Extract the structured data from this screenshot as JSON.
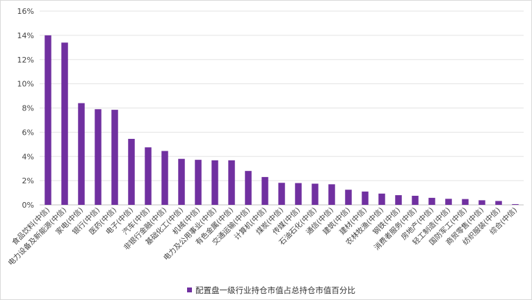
{
  "chart_data": {
    "type": "bar",
    "title": "",
    "xlabel": "",
    "ylabel": "",
    "ylim": [
      0,
      16
    ],
    "yticks": [
      "0%",
      "2%",
      "4%",
      "6%",
      "8%",
      "10%",
      "12%",
      "14%",
      "16%"
    ],
    "grid": true,
    "legend_position": "bottom",
    "color": "#7030A0",
    "categories": [
      "食品饮料(中信)",
      "电力设备及新能源(中信)",
      "家电(中信)",
      "银行(中信)",
      "医药(中信)",
      "电子(中信)",
      "汽车(中信)",
      "非银行金融(中信)",
      "基础化工(中信)",
      "机械(中信)",
      "电力及公用事业(中信)",
      "有色金属(中信)",
      "交通运输(中信)",
      "计算机(中信)",
      "煤炭(中信)",
      "传媒(中信)",
      "石油石化(中信)",
      "通信(中信)",
      "建筑(中信)",
      "建材(中信)",
      "农林牧渔(中信)",
      "钢铁(中信)",
      "消费者服务(中信)",
      "房地产(中信)",
      "轻工制造(中信)",
      "国防军工(中信)",
      "商贸零售(中信)",
      "纺织服装(中信)",
      "综合(中信)"
    ],
    "series": [
      {
        "name": "配置盘一级行业持仓市值占总持仓市值百分比",
        "values": [
          14.0,
          13.4,
          8.4,
          7.9,
          7.85,
          5.45,
          4.75,
          4.45,
          3.8,
          3.72,
          3.68,
          3.68,
          2.8,
          2.3,
          1.82,
          1.8,
          1.75,
          1.7,
          1.25,
          1.1,
          0.93,
          0.8,
          0.75,
          0.58,
          0.5,
          0.48,
          0.38,
          0.32,
          0.06
        ]
      }
    ]
  }
}
